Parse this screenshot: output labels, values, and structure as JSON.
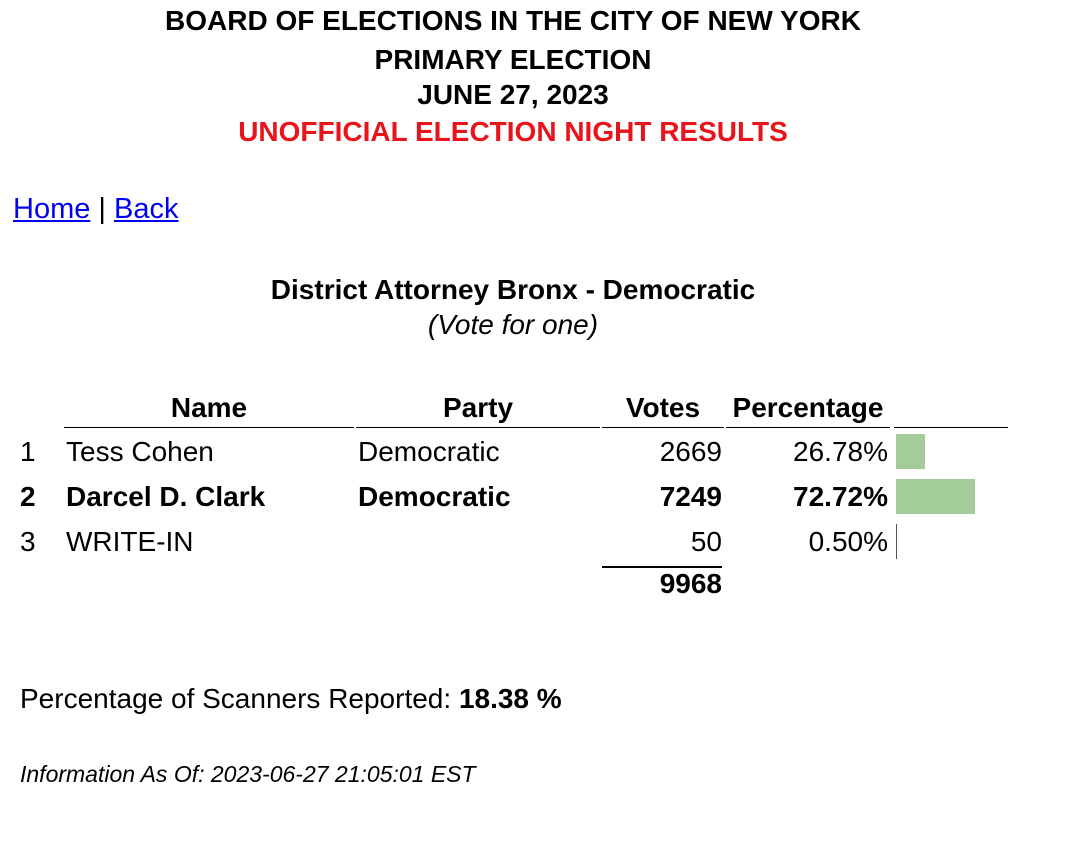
{
  "header": {
    "line1": "BOARD OF ELECTIONS IN THE CITY OF NEW YORK",
    "line2": "PRIMARY ELECTION",
    "line3": "JUNE 27, 2023",
    "line4": "UNOFFICIAL ELECTION NIGHT RESULTS",
    "line4_color": "#e8141b"
  },
  "nav": {
    "home": "Home",
    "separator": "|",
    "back": "Back"
  },
  "contest": {
    "title": "District Attorney Bronx - Democratic",
    "subtitle": "(Vote for one)"
  },
  "table": {
    "headers": {
      "name": "Name",
      "party": "Party",
      "votes": "Votes",
      "percentage": "Percentage"
    },
    "rows": [
      {
        "num": "1",
        "name": "Tess Cohen",
        "party": "Democratic",
        "votes": "2669",
        "percentage": "26.78%",
        "share": 0.2678,
        "bold": false
      },
      {
        "num": "2",
        "name": "Darcel D. Clark",
        "party": "Democratic",
        "votes": "7249",
        "percentage": "72.72%",
        "share": 0.7272,
        "bold": true
      },
      {
        "num": "3",
        "name": "WRITE-IN",
        "party": "",
        "votes": "50",
        "percentage": "0.50%",
        "share": 0.005,
        "bold": false
      }
    ],
    "total_votes": "9968",
    "bar_color": "#a3cc9a"
  },
  "footer": {
    "scanners_label": "Percentage of Scanners Reported:",
    "scanners_value": "18.38 %",
    "as_of": "Information As Of: 2023-06-27 21:05:01 EST"
  }
}
